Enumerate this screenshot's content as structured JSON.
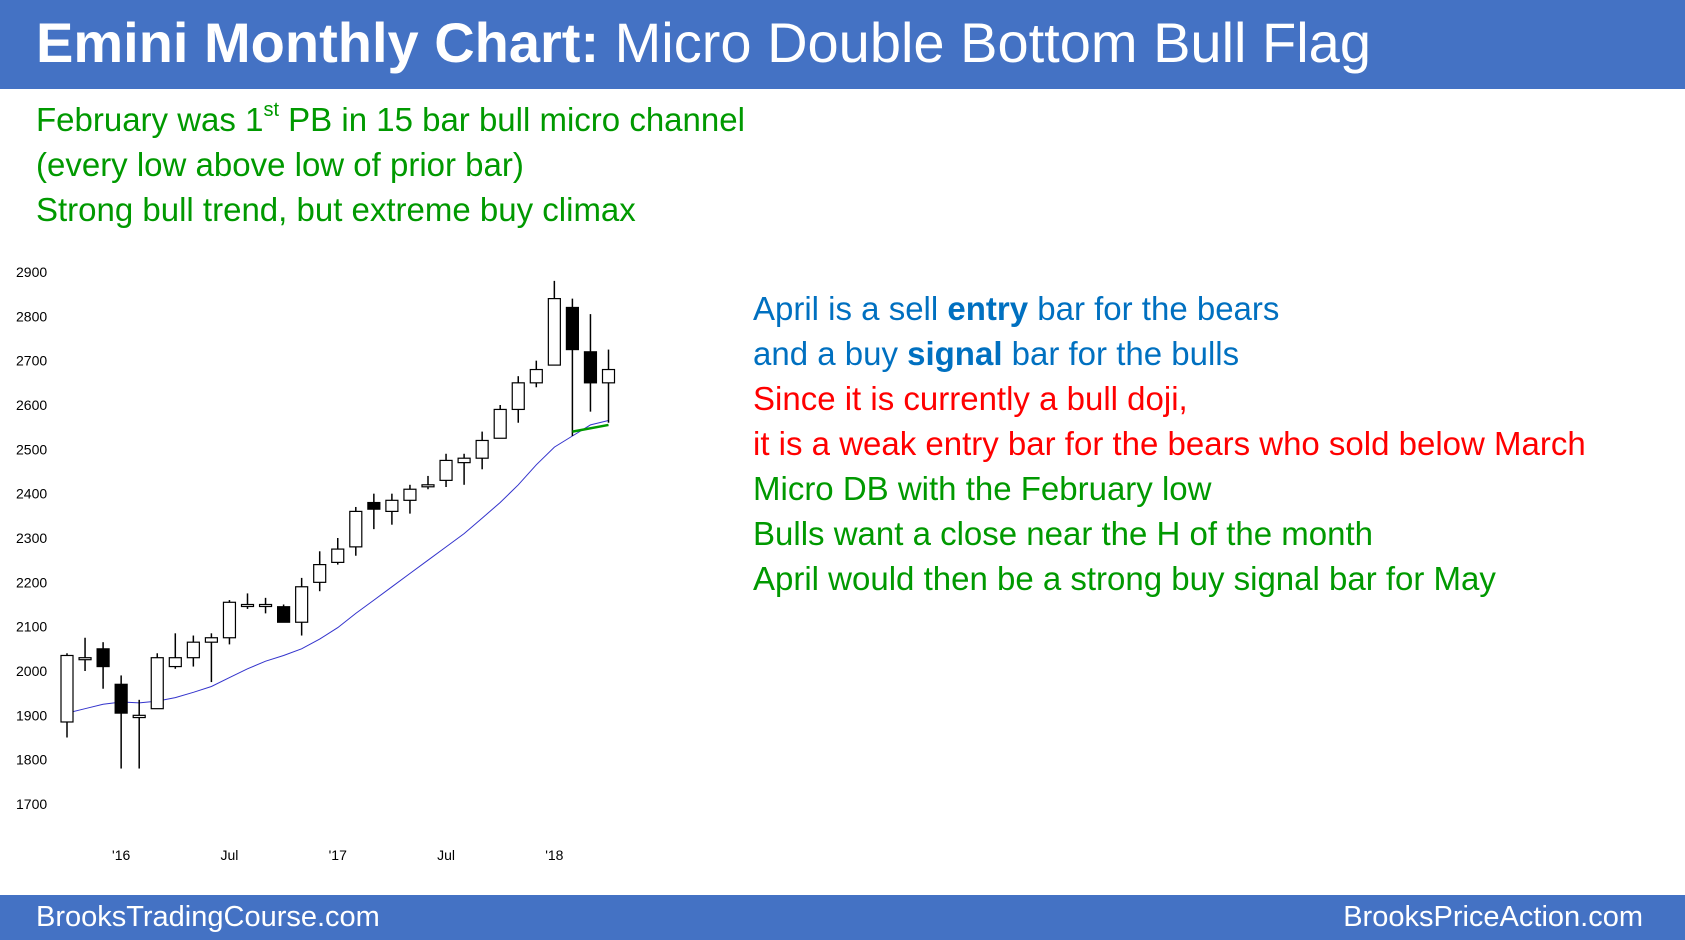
{
  "title": {
    "bold": "Emini Monthly Chart:",
    "rest": "Micro Double Bottom Bull Flag"
  },
  "intro": {
    "line1_pre": "February was 1",
    "line1_sup": "st",
    "line1_post": " PB in 15 bar bull micro channel",
    "line2": "(every low above low of prior bar)",
    "line3": "Strong bull trend, but extreme buy climax"
  },
  "notes": {
    "n1_pre": "April is a sell ",
    "n1_bold": "entry",
    "n1_post": " bar for the bears",
    "n2_pre": "and a buy ",
    "n2_bold": "signal",
    "n2_post": " bar for the bulls",
    "n3": "Since it is currently a bull doji,",
    "n4": "it is a weak entry bar for the bears who sold below March",
    "n5": "Micro DB with the February low",
    "n6": "Bulls want a close near the H of the month",
    "n7": "April would then be a strong buy signal bar for May"
  },
  "footer": {
    "left": "BrooksTradingCourse.com",
    "right": "BrooksPriceAction.com"
  },
  "colors": {
    "title_bar": "#4472c4",
    "green_text": "#009900",
    "blue_text": "#0070c0",
    "red_text": "#ff0000",
    "moving_average": "#3333cc",
    "double_bottom_line": "#009900"
  },
  "chart_data": {
    "type": "candlestick",
    "ylim": [
      1700,
      2900
    ],
    "yticks": [
      1700,
      1800,
      1900,
      2000,
      2100,
      2200,
      2300,
      2400,
      2500,
      2600,
      2700,
      2800,
      2900
    ],
    "xtick_labels": [
      {
        "label": "'16",
        "index": 3
      },
      {
        "label": "Jul",
        "index": 9
      },
      {
        "label": "'17",
        "index": 15
      },
      {
        "label": "Jul",
        "index": 21
      },
      {
        "label": "'18",
        "index": 27
      }
    ],
    "candles": [
      {
        "o": 1885,
        "h": 2040,
        "l": 1850,
        "c": 2035
      },
      {
        "o": 2030,
        "h": 2075,
        "l": 2000,
        "c": 2030
      },
      {
        "o": 2050,
        "h": 2065,
        "l": 1960,
        "c": 2010
      },
      {
        "o": 1970,
        "h": 1990,
        "l": 1780,
        "c": 1905
      },
      {
        "o": 1895,
        "h": 1935,
        "l": 1780,
        "c": 1900
      },
      {
        "o": 1915,
        "h": 2040,
        "l": 1915,
        "c": 2030
      },
      {
        "o": 2010,
        "h": 2085,
        "l": 2005,
        "c": 2030
      },
      {
        "o": 2030,
        "h": 2080,
        "l": 2010,
        "c": 2065
      },
      {
        "o": 2065,
        "h": 2085,
        "l": 1975,
        "c": 2075
      },
      {
        "o": 2075,
        "h": 2160,
        "l": 2060,
        "c": 2155
      },
      {
        "o": 2150,
        "h": 2175,
        "l": 2140,
        "c": 2150
      },
      {
        "o": 2150,
        "h": 2165,
        "l": 2130,
        "c": 2150
      },
      {
        "o": 2145,
        "h": 2150,
        "l": 2115,
        "c": 2110
      },
      {
        "o": 2110,
        "h": 2210,
        "l": 2080,
        "c": 2190
      },
      {
        "o": 2200,
        "h": 2270,
        "l": 2180,
        "c": 2240
      },
      {
        "o": 2245,
        "h": 2300,
        "l": 2240,
        "c": 2275
      },
      {
        "o": 2280,
        "h": 2370,
        "l": 2260,
        "c": 2360
      },
      {
        "o": 2380,
        "h": 2400,
        "l": 2320,
        "c": 2365
      },
      {
        "o": 2360,
        "h": 2400,
        "l": 2330,
        "c": 2385
      },
      {
        "o": 2385,
        "h": 2420,
        "l": 2355,
        "c": 2410
      },
      {
        "o": 2420,
        "h": 2440,
        "l": 2410,
        "c": 2420
      },
      {
        "o": 2430,
        "h": 2490,
        "l": 2415,
        "c": 2475
      },
      {
        "o": 2470,
        "h": 2490,
        "l": 2420,
        "c": 2480
      },
      {
        "o": 2480,
        "h": 2540,
        "l": 2455,
        "c": 2520
      },
      {
        "o": 2525,
        "h": 2600,
        "l": 2525,
        "c": 2590
      },
      {
        "o": 2590,
        "h": 2665,
        "l": 2560,
        "c": 2650
      },
      {
        "o": 2650,
        "h": 2700,
        "l": 2640,
        "c": 2680
      },
      {
        "o": 2690,
        "h": 2880,
        "l": 2690,
        "c": 2840
      },
      {
        "o": 2820,
        "h": 2840,
        "l": 2530,
        "c": 2725
      },
      {
        "o": 2720,
        "h": 2805,
        "l": 2585,
        "c": 2650
      },
      {
        "o": 2650,
        "h": 2725,
        "l": 2560,
        "c": 2680
      }
    ],
    "moving_average": [
      1905,
      1915,
      1925,
      1930,
      1928,
      1932,
      1940,
      1952,
      1965,
      1985,
      2005,
      2022,
      2035,
      2050,
      2072,
      2098,
      2130,
      2160,
      2190,
      2220,
      2250,
      2280,
      2310,
      2345,
      2380,
      2420,
      2465,
      2505,
      2530,
      2555,
      2565
    ],
    "double_bottom": {
      "from_index": 28,
      "to_index": 30,
      "left_value": 2540,
      "right_value": 2555
    }
  }
}
